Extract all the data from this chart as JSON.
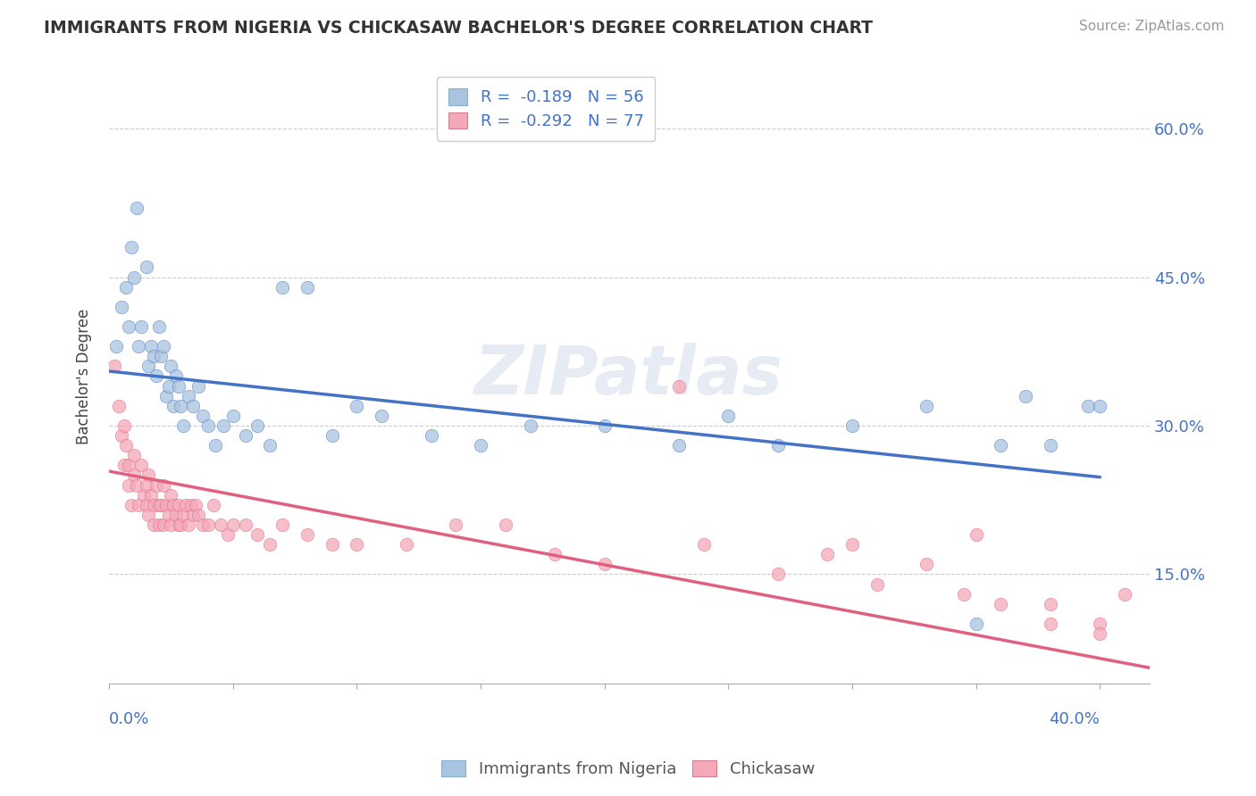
{
  "title": "IMMIGRANTS FROM NIGERIA VS CHICKASAW BACHELOR'S DEGREE CORRELATION CHART",
  "source": "Source: ZipAtlas.com",
  "ylabel": "Bachelor's Degree",
  "ylim": [
    0.04,
    0.66
  ],
  "xlim": [
    0.0,
    0.42
  ],
  "blue_R": -0.189,
  "blue_N": 56,
  "pink_R": -0.292,
  "pink_N": 77,
  "blue_color": "#a8c4e0",
  "pink_color": "#f4a8b8",
  "blue_line_color": "#4472c4",
  "pink_line_color": "#e06080",
  "legend_label_blue": "Immigrants from Nigeria",
  "legend_label_pink": "Chickasaw",
  "watermark": "ZIPatlas",
  "ytick_vals": [
    0.15,
    0.3,
    0.45,
    0.6
  ],
  "ytick_labels": [
    "15.0%",
    "30.0%",
    "45.0%",
    "60.0%"
  ],
  "blue_line_x0": 0.0,
  "blue_line_y0": 0.355,
  "blue_line_x1": 0.4,
  "blue_line_y1": 0.248,
  "pink_line_x0": 0.0,
  "pink_line_y0": 0.254,
  "pink_line_x1": 0.4,
  "pink_line_y1": 0.065,
  "blue_scatter_x": [
    0.003,
    0.005,
    0.007,
    0.008,
    0.009,
    0.01,
    0.011,
    0.012,
    0.013,
    0.015,
    0.016,
    0.017,
    0.018,
    0.019,
    0.02,
    0.021,
    0.022,
    0.023,
    0.024,
    0.025,
    0.026,
    0.027,
    0.028,
    0.029,
    0.03,
    0.032,
    0.034,
    0.036,
    0.038,
    0.04,
    0.043,
    0.046,
    0.05,
    0.055,
    0.06,
    0.065,
    0.07,
    0.08,
    0.09,
    0.1,
    0.11,
    0.13,
    0.15,
    0.17,
    0.2,
    0.23,
    0.25,
    0.27,
    0.3,
    0.33,
    0.35,
    0.36,
    0.37,
    0.38,
    0.395,
    0.4
  ],
  "blue_scatter_y": [
    0.38,
    0.42,
    0.44,
    0.4,
    0.48,
    0.45,
    0.52,
    0.38,
    0.4,
    0.46,
    0.36,
    0.38,
    0.37,
    0.35,
    0.4,
    0.37,
    0.38,
    0.33,
    0.34,
    0.36,
    0.32,
    0.35,
    0.34,
    0.32,
    0.3,
    0.33,
    0.32,
    0.34,
    0.31,
    0.3,
    0.28,
    0.3,
    0.31,
    0.29,
    0.3,
    0.28,
    0.44,
    0.44,
    0.29,
    0.32,
    0.31,
    0.29,
    0.28,
    0.3,
    0.3,
    0.28,
    0.31,
    0.28,
    0.3,
    0.32,
    0.1,
    0.28,
    0.33,
    0.28,
    0.32,
    0.32
  ],
  "pink_scatter_x": [
    0.002,
    0.004,
    0.005,
    0.006,
    0.006,
    0.007,
    0.008,
    0.008,
    0.009,
    0.01,
    0.01,
    0.011,
    0.012,
    0.013,
    0.014,
    0.015,
    0.015,
    0.016,
    0.016,
    0.017,
    0.018,
    0.018,
    0.019,
    0.02,
    0.02,
    0.021,
    0.022,
    0.022,
    0.023,
    0.024,
    0.025,
    0.025,
    0.026,
    0.027,
    0.028,
    0.028,
    0.029,
    0.03,
    0.031,
    0.032,
    0.033,
    0.034,
    0.035,
    0.036,
    0.038,
    0.04,
    0.042,
    0.045,
    0.048,
    0.05,
    0.055,
    0.06,
    0.065,
    0.07,
    0.08,
    0.09,
    0.1,
    0.12,
    0.14,
    0.16,
    0.18,
    0.2,
    0.23,
    0.27,
    0.31,
    0.345,
    0.36,
    0.38,
    0.4,
    0.41,
    0.24,
    0.29,
    0.33,
    0.35,
    0.3,
    0.38,
    0.4
  ],
  "pink_scatter_y": [
    0.36,
    0.32,
    0.29,
    0.3,
    0.26,
    0.28,
    0.26,
    0.24,
    0.22,
    0.27,
    0.25,
    0.24,
    0.22,
    0.26,
    0.23,
    0.24,
    0.22,
    0.25,
    0.21,
    0.23,
    0.22,
    0.2,
    0.24,
    0.22,
    0.2,
    0.22,
    0.24,
    0.2,
    0.22,
    0.21,
    0.2,
    0.23,
    0.22,
    0.21,
    0.2,
    0.22,
    0.2,
    0.21,
    0.22,
    0.2,
    0.22,
    0.21,
    0.22,
    0.21,
    0.2,
    0.2,
    0.22,
    0.2,
    0.19,
    0.2,
    0.2,
    0.19,
    0.18,
    0.2,
    0.19,
    0.18,
    0.18,
    0.18,
    0.2,
    0.2,
    0.17,
    0.16,
    0.34,
    0.15,
    0.14,
    0.13,
    0.12,
    0.12,
    0.1,
    0.13,
    0.18,
    0.17,
    0.16,
    0.19,
    0.18,
    0.1,
    0.09
  ]
}
